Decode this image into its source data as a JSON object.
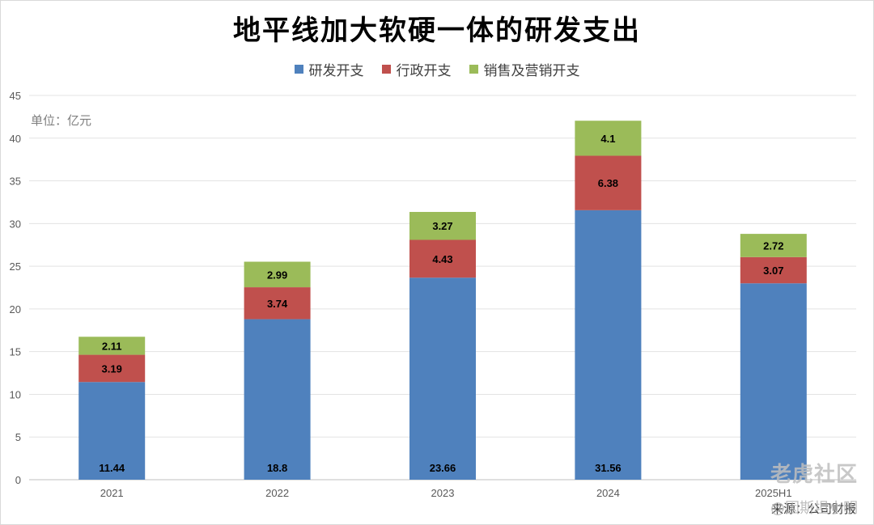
{
  "chart_data": {
    "type": "bar",
    "stacked": true,
    "title": "地平线加大软硬一体的研发支出",
    "unit_label": "单位：亿元",
    "source": "来源：公司财报",
    "categories": [
      "2021",
      "2022",
      "2023",
      "2024",
      "2025H1"
    ],
    "series": [
      {
        "name": "研发开支",
        "color": "#4f81bd",
        "values": [
          11.44,
          18.8,
          23.66,
          31.56,
          23.0
        ]
      },
      {
        "name": "行政开支",
        "color": "#c0504d",
        "values": [
          3.19,
          3.74,
          4.43,
          6.38,
          3.07
        ]
      },
      {
        "name": "销售及营销开支",
        "color": "#9bbb59",
        "values": [
          2.11,
          2.99,
          3.27,
          4.1,
          2.72
        ]
      }
    ],
    "data_labels": [
      [
        "11.44",
        "18.8",
        "23.66",
        "31.56",
        ""
      ],
      [
        "3.19",
        "3.74",
        "4.43",
        "6.38",
        "3.07"
      ],
      [
        "2.11",
        "2.99",
        "3.27",
        "4.1",
        "2.72"
      ]
    ],
    "yticks": [
      0,
      5,
      10,
      15,
      20,
      25,
      30,
      35,
      40,
      45
    ],
    "ylim": [
      0,
      45
    ],
    "grid": true,
    "legend_position": "top"
  },
  "watermark": {
    "brand": "老虎社区",
    "author": "@因斯坦小明"
  }
}
